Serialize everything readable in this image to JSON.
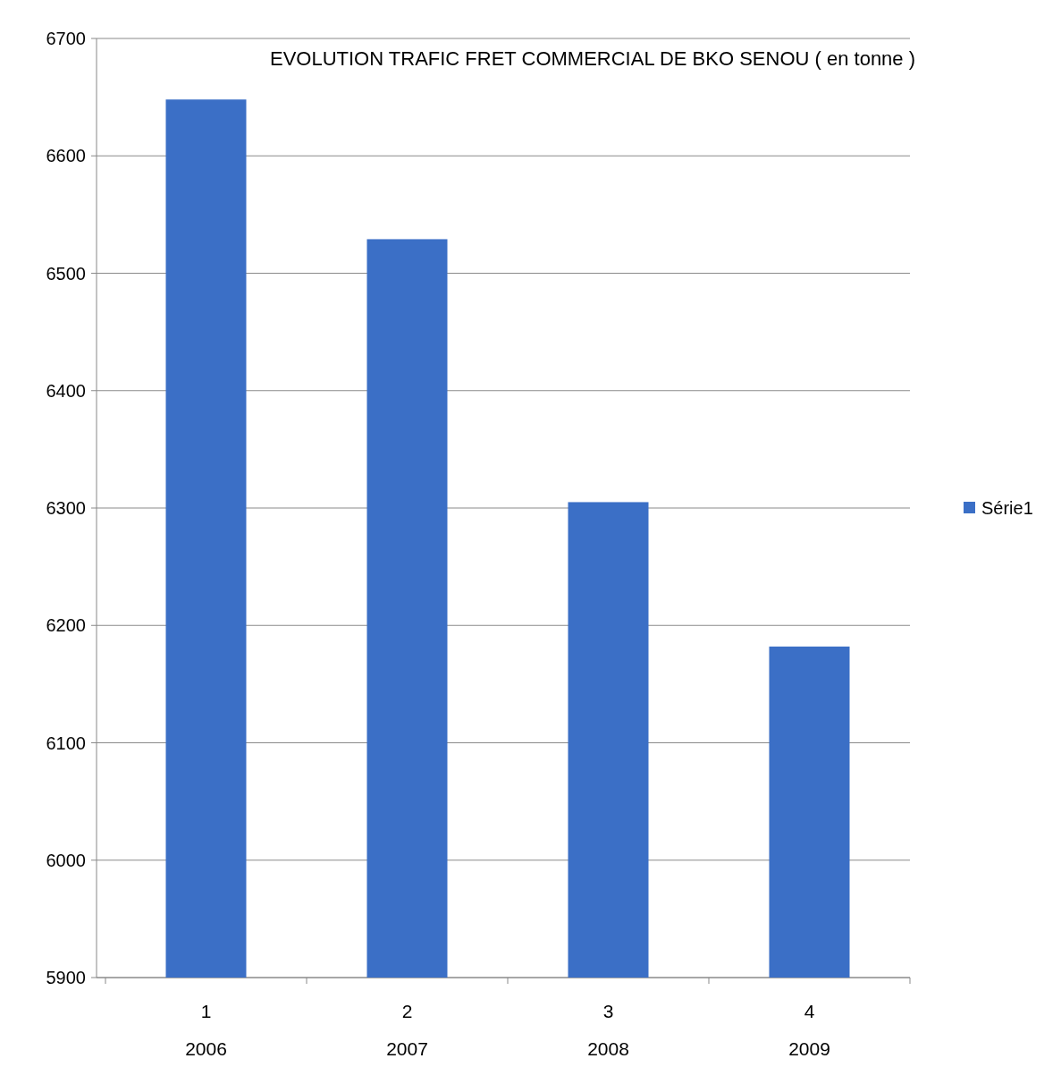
{
  "chart_data": {
    "type": "bar",
    "title": "EVOLUTION TRAFIC FRET  COMMERCIAL DE BKO SENOU  ( en tonne )",
    "categories": [
      "1\n2006",
      "2\n2007",
      "3\n2008",
      "4\n2009"
    ],
    "series": [
      {
        "name": "Série1",
        "color": "#3b6fc6",
        "values": [
          6648,
          6529,
          6305,
          6182
        ]
      }
    ],
    "ylim": [
      5900,
      6700
    ],
    "yticks": [
      5900,
      6000,
      6100,
      6200,
      6300,
      6400,
      6500,
      6600,
      6700
    ],
    "grid": "y",
    "legend": "right"
  }
}
